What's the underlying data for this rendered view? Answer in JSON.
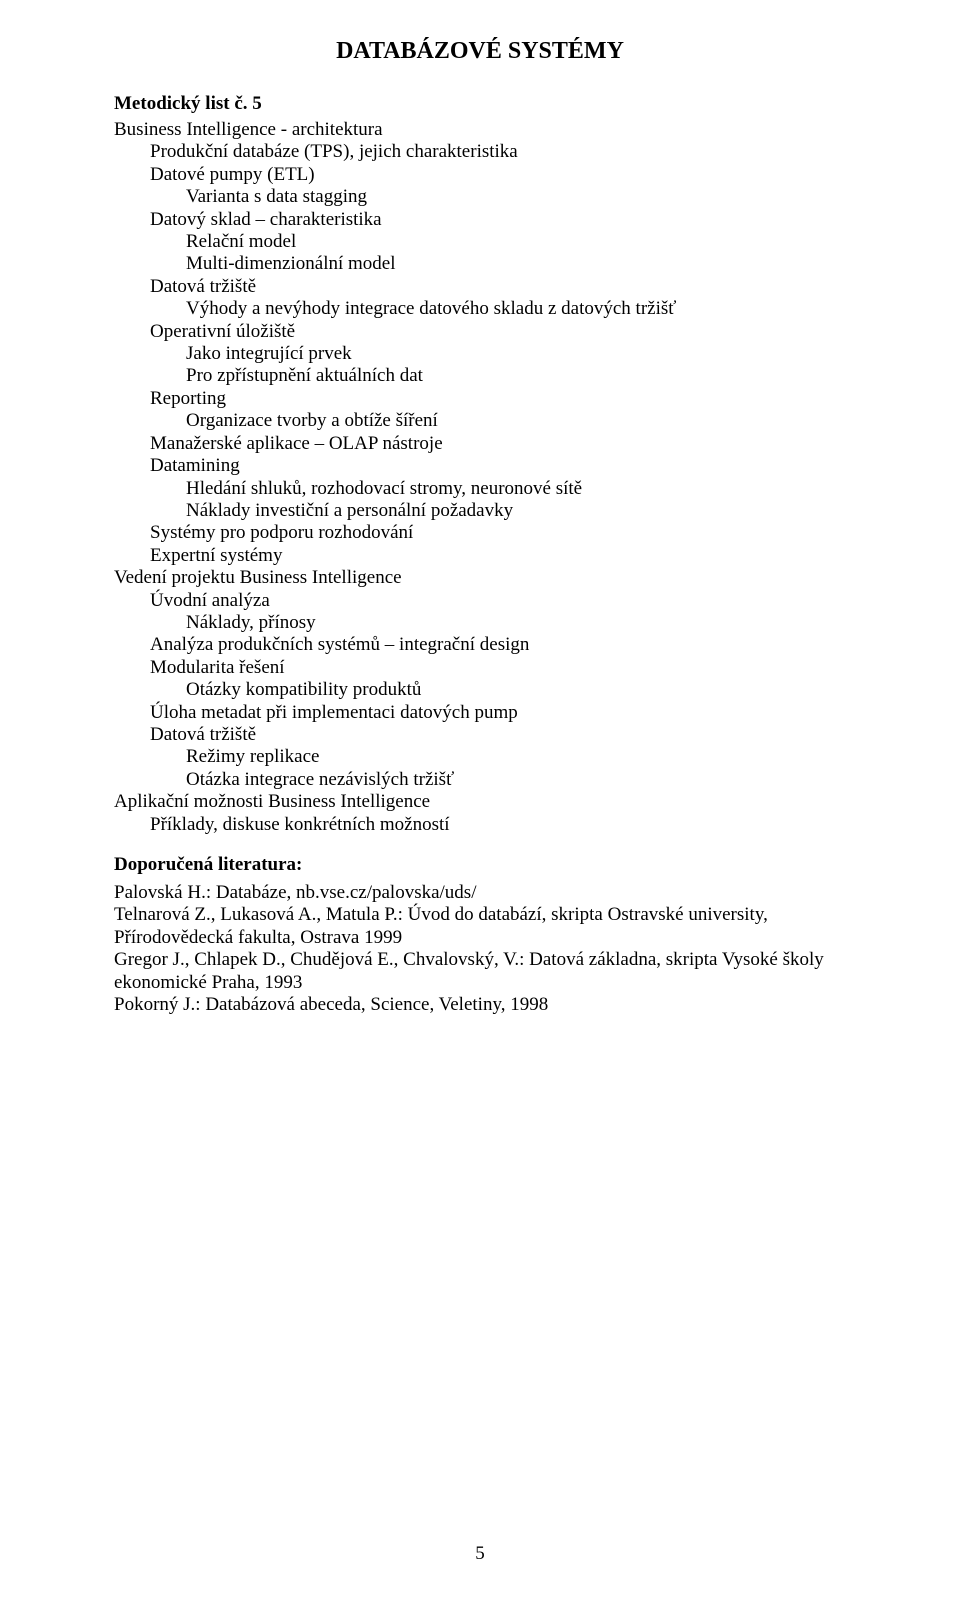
{
  "title": "DATABÁZOVÉ SYSTÉMY",
  "subtitle": "Metodický list č. 5",
  "lines": [
    {
      "t": "Business Intelligence - architektura",
      "i": 0
    },
    {
      "t": "Produkční databáze (TPS), jejich charakteristika",
      "i": 1
    },
    {
      "t": "Datové pumpy (ETL)",
      "i": 1
    },
    {
      "t": "Varianta s data stagging",
      "i": 2
    },
    {
      "t": "Datový sklad – charakteristika",
      "i": 1
    },
    {
      "t": "Relační model",
      "i": 2
    },
    {
      "t": "Multi-dimenzionální model",
      "i": 2
    },
    {
      "t": "Datová tržiště",
      "i": 1
    },
    {
      "t": "Výhody a nevýhody integrace datového skladu z datových tržišť",
      "i": 2
    },
    {
      "t": "Operativní úložiště",
      "i": 1
    },
    {
      "t": "Jako integrující prvek",
      "i": 2
    },
    {
      "t": "Pro zpřístupnění aktuálních dat",
      "i": 2
    },
    {
      "t": "Reporting",
      "i": 1
    },
    {
      "t": "Organizace tvorby a obtíže šíření",
      "i": 2
    },
    {
      "t": "Manažerské aplikace – OLAP nástroje",
      "i": 1
    },
    {
      "t": "Datamining",
      "i": 1
    },
    {
      "t": "Hledání shluků, rozhodovací stromy, neuronové sítě",
      "i": 2
    },
    {
      "t": "Náklady investiční a personální požadavky",
      "i": 2
    },
    {
      "t": "Systémy pro podporu rozhodování",
      "i": 1
    },
    {
      "t": "Expertní systémy",
      "i": 1
    },
    {
      "t": "Vedení projektu Business Intelligence",
      "i": 0
    },
    {
      "t": "Úvodní analýza",
      "i": 1
    },
    {
      "t": "Náklady, přínosy",
      "i": 2
    },
    {
      "t": "Analýza produkčních systémů – integrační design",
      "i": 1
    },
    {
      "t": "Modularita řešení",
      "i": 1
    },
    {
      "t": "Otázky kompatibility produktů",
      "i": 2
    },
    {
      "t": "Úloha metadat při implementaci datových pump",
      "i": 1
    },
    {
      "t": "Datová tržiště",
      "i": 1
    },
    {
      "t": "Režimy replikace",
      "i": 2
    },
    {
      "t": "Otázka integrace nezávislých tržišť",
      "i": 2
    },
    {
      "t": "Aplikační možnosti Business Intelligence",
      "i": 0
    },
    {
      "t": "Příklady, diskuse konkrétních možností",
      "i": 1
    }
  ],
  "lit_label": "Doporučená literatura:",
  "lit": [
    "Palovská H.: Databáze, nb.vse.cz/palovska/uds/",
    "Telnarová Z., Lukasová A., Matula P.: Úvod do databází, skripta Ostravské university, Přírodovědecká fakulta, Ostrava 1999",
    "Gregor J., Chlapek D., Chudějová E., Chvalovský, V.: Datová základna, skripta Vysoké školy ekonomické Praha, 1993",
    "Pokorný J.: Databázová abeceda, Science, Veletiny, 1998"
  ],
  "page_number": "5"
}
